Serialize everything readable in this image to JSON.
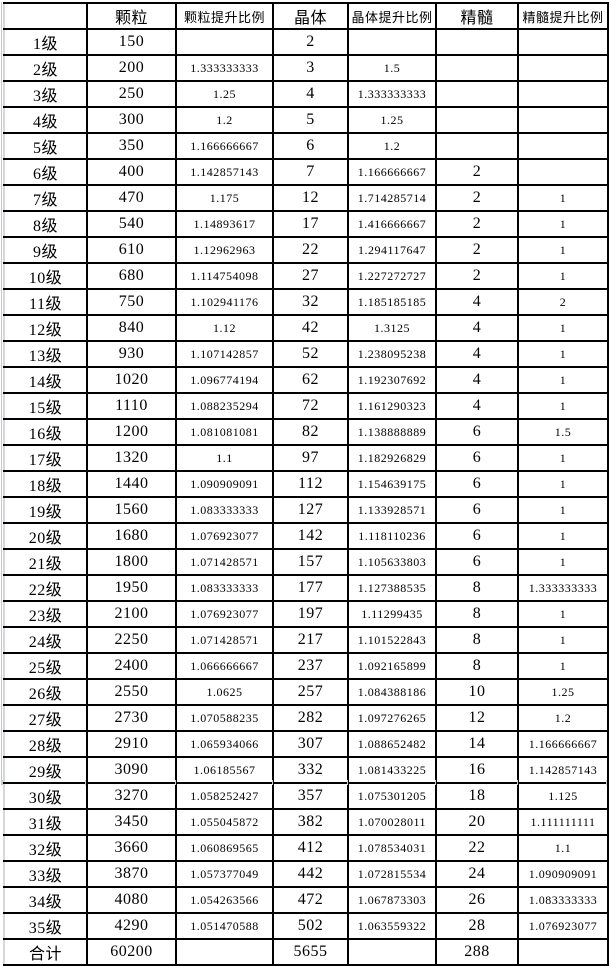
{
  "page": {
    "background_color": "#ffffff",
    "table_border_color": "#000000",
    "sheet_gridline_color": "#c3c9d4",
    "text_color": "#000000"
  },
  "table": {
    "headers": [
      "",
      "颗粒",
      "颗粒提升比例",
      "晶体",
      "晶体提升比例",
      "精髓",
      "精髓提升比例"
    ],
    "columns": [
      "level",
      "particle",
      "particle-ratio",
      "crystal",
      "crystal-ratio",
      "essence",
      "essence-ratio"
    ],
    "rows": [
      [
        "1级",
        "150",
        "",
        "2",
        "",
        "",
        ""
      ],
      [
        "2级",
        "200",
        "1.333333333",
        "3",
        "1.5",
        "",
        ""
      ],
      [
        "3级",
        "250",
        "1.25",
        "4",
        "1.333333333",
        "",
        ""
      ],
      [
        "4级",
        "300",
        "1.2",
        "5",
        "1.25",
        "",
        ""
      ],
      [
        "5级",
        "350",
        "1.166666667",
        "6",
        "1.2",
        "",
        ""
      ],
      [
        "6级",
        "400",
        "1.142857143",
        "7",
        "1.166666667",
        "2",
        ""
      ],
      [
        "7级",
        "470",
        "1.175",
        "12",
        "1.714285714",
        "2",
        "1"
      ],
      [
        "8级",
        "540",
        "1.14893617",
        "17",
        "1.416666667",
        "2",
        "1"
      ],
      [
        "9级",
        "610",
        "1.12962963",
        "22",
        "1.294117647",
        "2",
        "1"
      ],
      [
        "10级",
        "680",
        "1.114754098",
        "27",
        "1.227272727",
        "2",
        "1"
      ],
      [
        "11级",
        "750",
        "1.102941176",
        "32",
        "1.185185185",
        "4",
        "2"
      ],
      [
        "12级",
        "840",
        "1.12",
        "42",
        "1.3125",
        "4",
        "1"
      ],
      [
        "13级",
        "930",
        "1.107142857",
        "52",
        "1.238095238",
        "4",
        "1"
      ],
      [
        "14级",
        "1020",
        "1.096774194",
        "62",
        "1.192307692",
        "4",
        "1"
      ],
      [
        "15级",
        "1110",
        "1.088235294",
        "72",
        "1.161290323",
        "4",
        "1"
      ],
      [
        "16级",
        "1200",
        "1.081081081",
        "82",
        "1.138888889",
        "6",
        "1.5"
      ],
      [
        "17级",
        "1320",
        "1.1",
        "97",
        "1.182926829",
        "6",
        "1"
      ],
      [
        "18级",
        "1440",
        "1.090909091",
        "112",
        "1.154639175",
        "6",
        "1"
      ],
      [
        "19级",
        "1560",
        "1.083333333",
        "127",
        "1.133928571",
        "6",
        "1"
      ],
      [
        "20级",
        "1680",
        "1.076923077",
        "142",
        "1.118110236",
        "6",
        "1"
      ],
      [
        "21级",
        "1800",
        "1.071428571",
        "157",
        "1.105633803",
        "6",
        "1"
      ],
      [
        "22级",
        "1950",
        "1.083333333",
        "177",
        "1.127388535",
        "8",
        "1.333333333"
      ],
      [
        "23级",
        "2100",
        "1.076923077",
        "197",
        "1.11299435",
        "8",
        "1"
      ],
      [
        "24级",
        "2250",
        "1.071428571",
        "217",
        "1.101522843",
        "8",
        "1"
      ],
      [
        "25级",
        "2400",
        "1.066666667",
        "237",
        "1.092165899",
        "8",
        "1"
      ],
      [
        "26级",
        "2550",
        "1.0625",
        "257",
        "1.084388186",
        "10",
        "1.25"
      ],
      [
        "27级",
        "2730",
        "1.070588235",
        "282",
        "1.097276265",
        "12",
        "1.2"
      ],
      [
        "28级",
        "2910",
        "1.065934066",
        "307",
        "1.088652482",
        "14",
        "1.166666667"
      ],
      [
        "29级",
        "3090",
        "1.06185567",
        "332",
        "1.081433225",
        "16",
        "1.142857143"
      ],
      [
        "30级",
        "3270",
        "1.058252427",
        "357",
        "1.075301205",
        "18",
        "1.125"
      ],
      [
        "31级",
        "3450",
        "1.055045872",
        "382",
        "1.070028011",
        "20",
        "1.111111111"
      ],
      [
        "32级",
        "3660",
        "1.060869565",
        "412",
        "1.078534031",
        "22",
        "1.1"
      ],
      [
        "33级",
        "3870",
        "1.057377049",
        "442",
        "1.072815534",
        "24",
        "1.090909091"
      ],
      [
        "34级",
        "4080",
        "1.054263566",
        "472",
        "1.067873303",
        "26",
        "1.083333333"
      ],
      [
        "35级",
        "4290",
        "1.051470588",
        "502",
        "1.063559322",
        "28",
        "1.076923077"
      ],
      [
        "合计",
        "60200",
        "",
        "5655",
        "",
        "288",
        ""
      ]
    ]
  }
}
